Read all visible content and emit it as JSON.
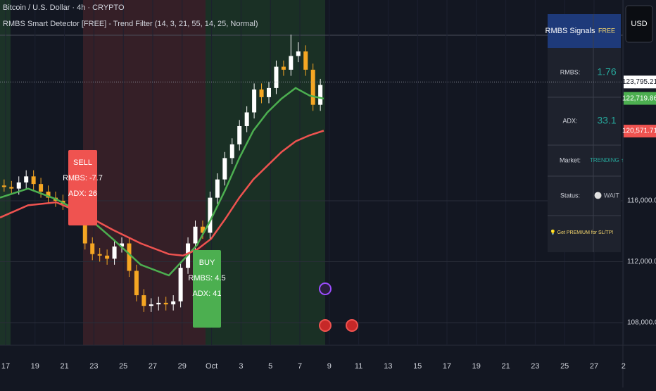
{
  "header": {
    "symbol": "Bitcoin / U.S. Dollar · 4h · CRYPTO",
    "indicator": "RMBS Smart Detector [FREE] - Trend Filter (14, 3, 21, 55, 14, 25, Normal)",
    "currency": "USD"
  },
  "chart_data": {
    "type": "candlestick",
    "x": [
      16.9,
      17.4,
      17.9,
      18.4,
      18.9,
      19.4,
      19.9,
      20.4,
      20.9,
      21.4,
      21.9,
      22.4,
      22.9,
      23.4,
      23.9,
      24.4,
      24.9,
      25.4,
      25.9,
      26.4,
      26.9,
      27.4,
      27.9,
      28.4,
      28.9,
      29.4,
      29.9,
      30.4,
      30.9,
      31.4,
      31.9,
      32.4,
      32.9,
      33.4,
      33.9,
      34.4,
      34.9,
      35.4,
      35.9,
      36.4,
      36.9,
      37.4,
      37.9,
      38.4
    ],
    "open": [
      117000,
      116900,
      116800,
      117200,
      117600,
      117100,
      116600,
      116200,
      116000,
      115800,
      115700,
      115100,
      113200,
      112500,
      112400,
      112200,
      113000,
      113200,
      111400,
      109800,
      109100,
      109200,
      109300,
      109200,
      109400,
      111600,
      113200,
      114300,
      113900,
      116200,
      117400,
      118800,
      119700,
      120900,
      121800,
      123300,
      122800,
      123400,
      124800,
      124600,
      125500,
      125800,
      124600,
      122300
    ],
    "high": [
      117400,
      117300,
      117600,
      118000,
      118000,
      117500,
      117000,
      116600,
      116400,
      116200,
      116100,
      115500,
      113600,
      112900,
      112800,
      113400,
      113600,
      113600,
      111800,
      110200,
      109600,
      109700,
      109700,
      109800,
      112000,
      113600,
      114700,
      114700,
      116600,
      117800,
      119200,
      120100,
      121300,
      122200,
      123700,
      123700,
      123800,
      125200,
      125200,
      126900,
      126400,
      126200,
      125000,
      124000
    ],
    "low": [
      116600,
      116400,
      116400,
      116800,
      116700,
      116200,
      115800,
      115600,
      115400,
      115300,
      114700,
      112800,
      112100,
      112000,
      111800,
      111800,
      112600,
      111000,
      109400,
      108700,
      108700,
      108800,
      108800,
      108800,
      109000,
      111200,
      112800,
      113500,
      113500,
      115800,
      117000,
      118400,
      119300,
      120500,
      121400,
      122400,
      122400,
      123000,
      124200,
      124200,
      125100,
      124200,
      121900,
      121900
    ],
    "close": [
      116900,
      116800,
      117200,
      117600,
      117100,
      116600,
      116200,
      116000,
      115800,
      115700,
      115100,
      113200,
      112500,
      112400,
      112200,
      113000,
      113200,
      111400,
      109800,
      109100,
      109200,
      109300,
      109200,
      109400,
      111600,
      113200,
      114300,
      113900,
      116200,
      117400,
      118800,
      119700,
      120900,
      121800,
      123300,
      122800,
      123400,
      124800,
      124600,
      125500,
      125800,
      124600,
      122300,
      123600
    ],
    "up_color": "#ffffff",
    "down_color": "#f5a623",
    "lines": [
      {
        "color": "#4caf50",
        "x": [
          16.62,
          18.53,
          20.45,
          22.36,
          24.28,
          26.19,
          28.1,
          29.06,
          30.02,
          30.97,
          31.93,
          32.89,
          33.84,
          34.8,
          35.76,
          36.72,
          37.67,
          38.63
        ],
        "values": [
          116200,
          116800,
          116100,
          115100,
          113500,
          111800,
          111100,
          112100,
          113100,
          114800,
          116700,
          118800,
          120600,
          121800,
          122700,
          123400,
          122900,
          122700
        ]
      },
      {
        "color": "#ef5350",
        "x": [
          16.62,
          18.53,
          20.45,
          22.36,
          24.28,
          26.19,
          28.1,
          29.06,
          30.02,
          30.97,
          31.93,
          32.89,
          33.84,
          34.8,
          35.76,
          36.72,
          37.67,
          38.63
        ],
        "values": [
          114900,
          115700,
          115900,
          115100,
          114100,
          113200,
          112500,
          112400,
          112800,
          113500,
          114800,
          116200,
          117400,
          118300,
          119200,
          119900,
          120300,
          120600
        ]
      }
    ],
    "xlim": [
      16.62,
      58.97
    ],
    "ylim": [
      106520,
      129175
    ],
    "yticks": [
      {
        "value": 108000,
        "label": "108,000.00"
      },
      {
        "value": 112000,
        "label": "112,000.00"
      },
      {
        "value": 116000,
        "label": "116,000.00"
      }
    ],
    "date_labels": [
      "17",
      "19",
      "21",
      "23",
      "25",
      "27",
      "29",
      "Oct",
      "3",
      "5",
      "7",
      "9",
      "11",
      "13",
      "15",
      "17",
      "19",
      "21",
      "23",
      "25",
      "27",
      "2"
    ],
    "price_tags": [
      {
        "value": 123795.21,
        "label": "123,795.21",
        "color": "#ffffff"
      },
      {
        "value": 122719.86,
        "label": "122,719.86",
        "color": "#4caf50"
      },
      {
        "value": 120571.71,
        "label": "120,571.71",
        "color": "#ef5350"
      }
    ],
    "signals": [
      {
        "lines": [
          "SELL",
          "RMBS: -7.7",
          "ADX: 26"
        ],
        "color": "#ef5350"
      },
      {
        "lines": [
          "BUY",
          "RMBS: 4.5",
          "ADX: 41"
        ],
        "color": "#4caf50"
      }
    ]
  },
  "panel": {
    "title": "RMBS Signals",
    "tier": "FREE",
    "rows": [
      [
        "RMBS:",
        "1.76"
      ],
      [
        "ADX:",
        "33.1"
      ],
      [
        "Market:",
        "TRENDING ↑"
      ],
      [
        "Status:",
        "⚪ WAIT"
      ]
    ],
    "note": "💡 Get PREMIUM for SL/TP!"
  }
}
